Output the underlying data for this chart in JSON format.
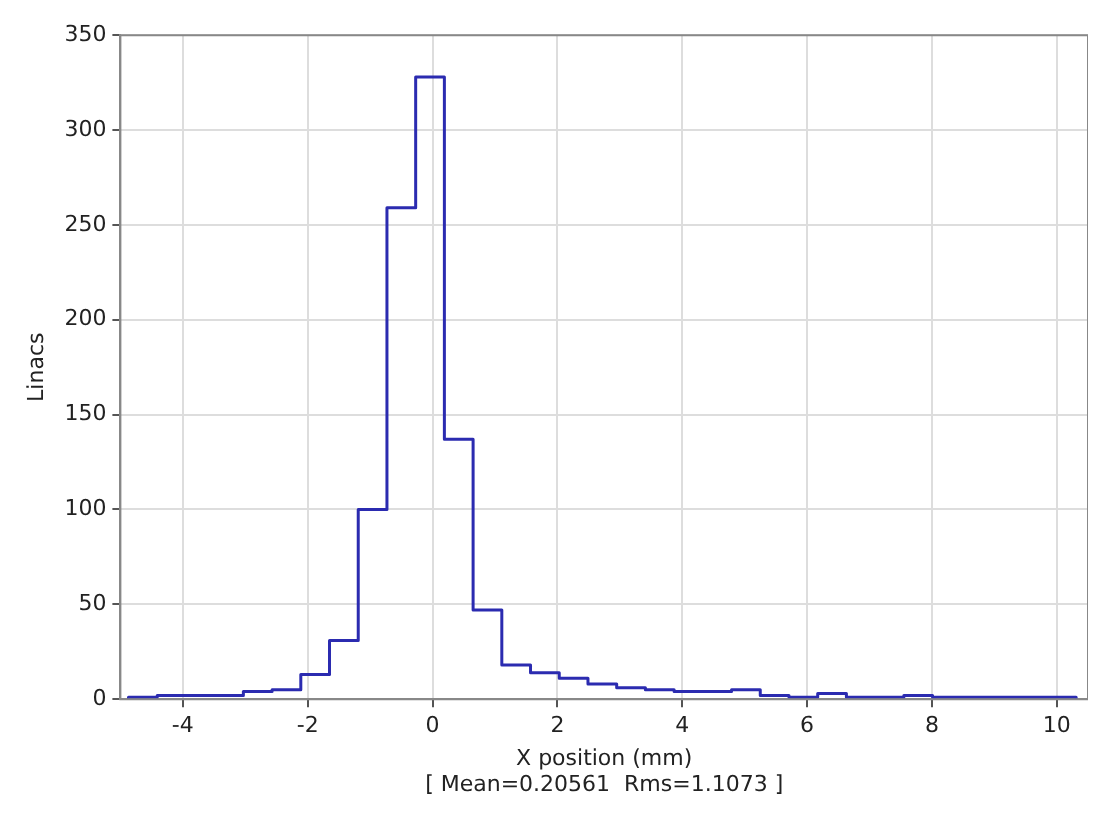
{
  "chart_data": {
    "type": "histogram",
    "xlabel": "X position (mm)",
    "ylabel": "Linacs",
    "annotations": [
      "[ Mean=0.20561  Rms=1.1073 ]"
    ],
    "bins": [
      -4.87,
      -4.41,
      -3.95,
      -3.49,
      -3.03,
      -2.57,
      -2.11,
      -1.65,
      -1.19,
      -0.73,
      -0.27,
      0.19,
      0.65,
      1.11,
      1.57,
      2.03,
      2.49,
      2.95,
      3.41,
      3.87,
      4.33,
      4.79,
      5.25,
      5.71,
      6.17,
      6.63,
      7.09,
      7.55,
      8.01,
      8.47,
      8.93,
      9.39,
      9.85,
      10.31
    ],
    "values": [
      1,
      2,
      2,
      2,
      4,
      5,
      13,
      31,
      100,
      259,
      328,
      137,
      47,
      18,
      14,
      11,
      8,
      6,
      5,
      4,
      4,
      5,
      2,
      1,
      3,
      1,
      1,
      2,
      1,
      1,
      1,
      1,
      1
    ],
    "color": "#2b2bb0",
    "xlim": [
      -5,
      10.5
    ],
    "xticks": [
      -4,
      -2,
      0,
      2,
      4,
      6,
      8,
      10
    ],
    "ylim": [
      0,
      350
    ],
    "yticks": [
      0,
      50,
      100,
      150,
      200,
      250,
      300,
      350
    ],
    "grid": true,
    "legend": false
  }
}
